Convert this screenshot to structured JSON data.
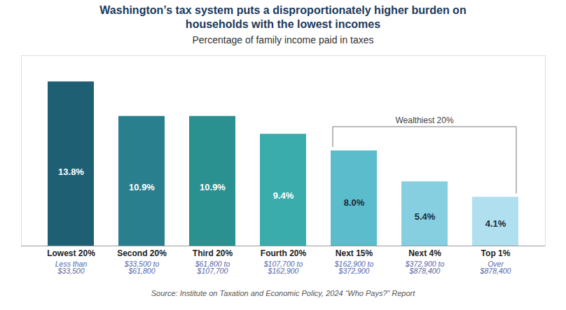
{
  "chart_data": {
    "type": "bar",
    "title": "Washington’s tax system puts a disproportionately higher burden on\nhouseholds with the lowest incomes",
    "subtitle": "Percentage of family income paid in taxes",
    "categories": [
      "Lowest 20%",
      "Second 20%",
      "Third 20%",
      "Fourth 20%",
      "Next 15%",
      "Next 4%",
      "Top 1%"
    ],
    "income_ranges": [
      "Less than\n$33,500",
      "$33,500 to\n$61,800",
      "$61,800 to\n$107,700",
      "$107,700 to\n$162,900",
      "$162,900 to\n$372,900",
      "$372,900 to\n$878,400",
      "Over\n$878,400"
    ],
    "values": [
      13.8,
      10.9,
      10.9,
      9.4,
      8.0,
      5.4,
      4.1
    ],
    "value_labels": [
      "13.8%",
      "10.9%",
      "10.9%",
      "9.4%",
      "8.0%",
      "5.4%",
      "4.1%"
    ],
    "colors": [
      "#1f5f74",
      "#2a7f8f",
      "#2a9090",
      "#3aacac",
      "#5bbccc",
      "#85cfe0",
      "#b0dff0"
    ],
    "data_labels": true,
    "ylim": [
      0,
      16
    ],
    "tick_labels": "x",
    "grid": false,
    "annotations": [
      {
        "text": "Wealthiest 20%",
        "from": "Next 15%",
        "to": "Top 1%"
      }
    ],
    "source": "Source: Institute on Taxation and Economic Policy, 2024 “Who Pays?” Report"
  }
}
